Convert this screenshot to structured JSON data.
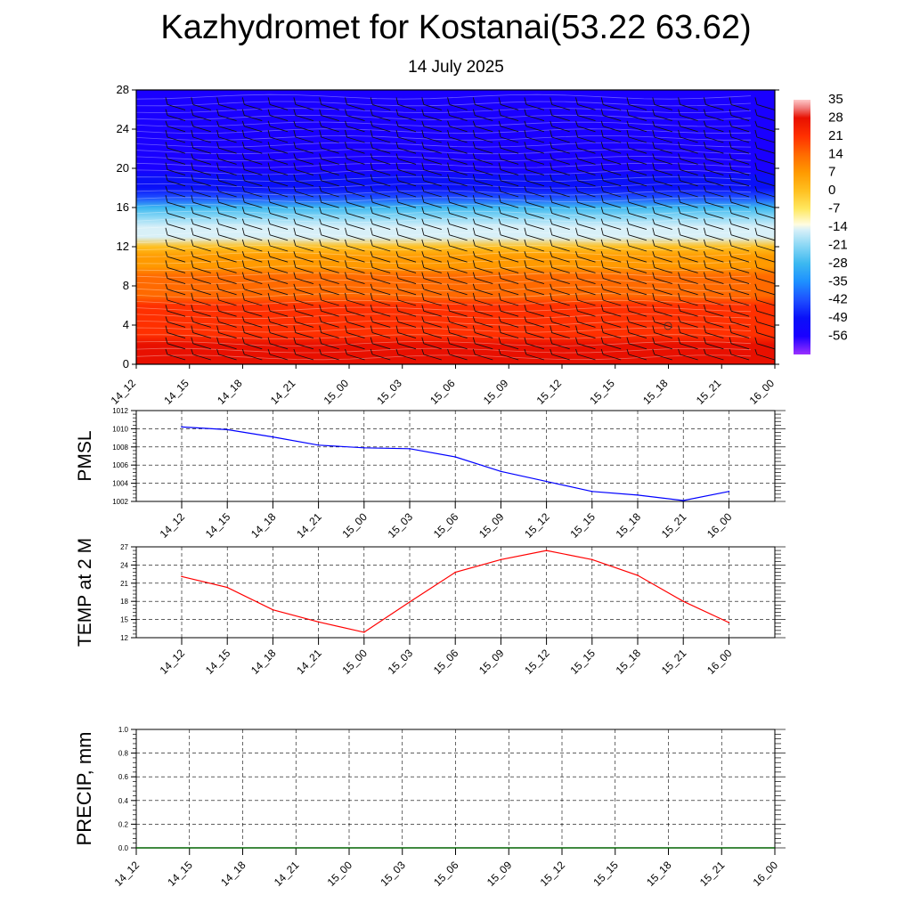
{
  "title": "Kazhydromet for Kostanai(53.22 63.62)",
  "subtitle": "14 July 2025",
  "chart_data": [
    {
      "type": "heatmap",
      "x_ticks": [
        "14_12",
        "14_15",
        "14_18",
        "14_21",
        "15_00",
        "15_03",
        "15_06",
        "15_09",
        "15_12",
        "15_15",
        "15_18",
        "15_21",
        "16_00"
      ],
      "y_ticks": [
        "0",
        "4",
        "8",
        "12",
        "16",
        "20",
        "24",
        "28"
      ],
      "ylim": [
        0,
        28
      ],
      "colorbar_labels": [
        "35",
        "28",
        "21",
        "14",
        "7",
        "0",
        "-7",
        "-14",
        "-21",
        "-28",
        "-35",
        "-42",
        "-49",
        "-56"
      ],
      "colorbar_range": [
        -63,
        35
      ],
      "profile": [
        {
          "level": 0,
          "value": 28
        },
        {
          "level": 1,
          "value": 26
        },
        {
          "level": 2,
          "value": 23
        },
        {
          "level": 3,
          "value": 21
        },
        {
          "level": 4,
          "value": 19
        },
        {
          "level": 5,
          "value": 17
        },
        {
          "level": 6,
          "value": 15
        },
        {
          "level": 7,
          "value": 13
        },
        {
          "level": 8,
          "value": 11
        },
        {
          "level": 9,
          "value": 8
        },
        {
          "level": 10,
          "value": 5
        },
        {
          "level": 11,
          "value": 1
        },
        {
          "level": 12,
          "value": -4
        },
        {
          "level": 13,
          "value": -15
        },
        {
          "level": 14,
          "value": -20
        },
        {
          "level": 15,
          "value": -27
        },
        {
          "level": 16,
          "value": -34
        },
        {
          "level": 17,
          "value": -42
        },
        {
          "level": 18,
          "value": -50
        },
        {
          "level": 19,
          "value": -55
        },
        {
          "level": 20,
          "value": -56
        },
        {
          "level": 22,
          "value": -57
        },
        {
          "level": 24,
          "value": -58
        },
        {
          "level": 26,
          "value": -57
        },
        {
          "level": 28,
          "value": -56
        }
      ],
      "colors": {
        "stops": [
          {
            "value": -63,
            "color": "#9b30ff"
          },
          {
            "value": -56,
            "color": "#1a00ff"
          },
          {
            "value": -49,
            "color": "#0a10f8"
          },
          {
            "value": -42,
            "color": "#1e50ff"
          },
          {
            "value": -35,
            "color": "#1e90ff"
          },
          {
            "value": -28,
            "color": "#3cb8f0"
          },
          {
            "value": -21,
            "color": "#8cd8f5"
          },
          {
            "value": -15,
            "color": "#d8f0f8"
          },
          {
            "value": -13,
            "color": "#fffce0"
          },
          {
            "value": -7,
            "color": "#ffe860"
          },
          {
            "value": 0,
            "color": "#ffc020"
          },
          {
            "value": 7,
            "color": "#ff9a00"
          },
          {
            "value": 14,
            "color": "#ff6a00"
          },
          {
            "value": 21,
            "color": "#ff3000"
          },
          {
            "value": 28,
            "color": "#e81000"
          },
          {
            "value": 32,
            "color": "#f08080"
          },
          {
            "value": 35,
            "color": "#ffc8c8"
          }
        ]
      },
      "wind_barbs": true
    },
    {
      "type": "line",
      "ylabel": "PMSL",
      "x": [
        "14_12",
        "14_15",
        "14_18",
        "14_21",
        "15_00",
        "15_03",
        "15_06",
        "15_09",
        "15_12",
        "15_15",
        "15_18",
        "15_21",
        "16_00"
      ],
      "y_ticks": [
        "1002",
        "1004",
        "1006",
        "1008",
        "1010",
        "1012"
      ],
      "ylim": [
        1002,
        1012
      ],
      "values": [
        1010.2,
        1009.9,
        1009.1,
        1008.2,
        1007.9,
        1007.8,
        1006.9,
        1005.3,
        1004.2,
        1003.1,
        1002.7,
        1002.1,
        1003.1
      ],
      "color": "#0000ff",
      "grid": true
    },
    {
      "type": "line",
      "ylabel": "TEMP at 2 M",
      "x": [
        "14_12",
        "14_15",
        "14_18",
        "14_21",
        "15_00",
        "15_03",
        "15_06",
        "15_09",
        "15_12",
        "15_15",
        "15_18",
        "15_21",
        "16_00"
      ],
      "y_ticks": [
        "12",
        "15",
        "18",
        "21",
        "24",
        "27"
      ],
      "ylim": [
        12,
        27
      ],
      "values": [
        22.1,
        20.3,
        16.6,
        14.6,
        12.9,
        17.9,
        22.8,
        24.9,
        26.4,
        24.9,
        22.3,
        18.0,
        14.5
      ],
      "color": "#ff0000",
      "grid": true
    },
    {
      "type": "line",
      "ylabel": "PRECIP, mm",
      "x": [
        "14_12",
        "14_15",
        "14_18",
        "14_21",
        "15_00",
        "15_03",
        "15_06",
        "15_09",
        "15_12",
        "15_15",
        "15_18",
        "15_21",
        "16_00"
      ],
      "y_ticks": [
        "0.0",
        "0.2",
        "0.4",
        "0.6",
        "0.8",
        "1.0"
      ],
      "ylim": [
        0,
        1
      ],
      "values": [
        0,
        0,
        0,
        0,
        0,
        0,
        0,
        0,
        0,
        0,
        0,
        0,
        0
      ],
      "color": "#006400",
      "grid": true
    }
  ]
}
